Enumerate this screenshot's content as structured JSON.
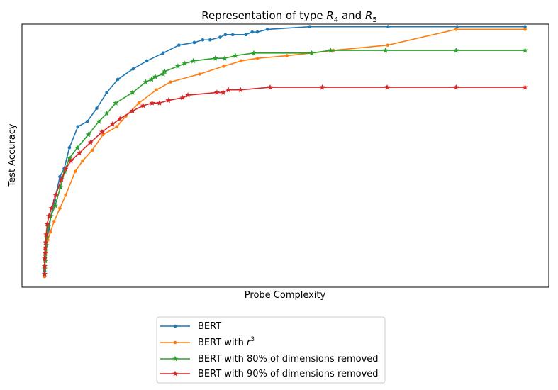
{
  "chart_data": {
    "type": "line",
    "title": "Representation of type R_4 and R_5",
    "title_parts": {
      "prefix": "Representation of type ",
      "r": "R",
      "sub4": "4",
      "and": " and ",
      "sub5": "5"
    },
    "xlabel": "Probe Complexity",
    "ylabel": "Test Accuracy",
    "xlim": [
      0,
      100
    ],
    "ylim": [
      0,
      100
    ],
    "xticks": [],
    "yticks": [],
    "grid": false,
    "legend_position": "below",
    "series": [
      {
        "name": "BERT",
        "legend_label": "BERT",
        "color": "#1f77b4",
        "marker": "circle",
        "x": [
          4.3,
          4.3,
          4.4,
          4.4,
          4.5,
          4.6,
          4.8,
          5.1,
          5.5,
          6.2,
          7.2,
          8.0,
          9.0,
          10.6,
          12.4,
          14.2,
          16.1,
          18.2,
          21.1,
          23.7,
          26.8,
          29.8,
          32.7,
          34.3,
          35.7,
          37.6,
          38.6,
          40.0,
          42.5,
          43.7,
          44.7,
          46.6,
          54.6,
          69.5,
          82.6,
          95.5
        ],
        "y": [
          6,
          8,
          11,
          13,
          15,
          17,
          19,
          22,
          27,
          33,
          42,
          45,
          53,
          61,
          63,
          68,
          74,
          79,
          83,
          86,
          89,
          92,
          93,
          94,
          94,
          95,
          96,
          96,
          96,
          97,
          97,
          98,
          99,
          99,
          99,
          99
        ]
      },
      {
        "name": "BERT with r^3",
        "legend_label_parts": {
          "prefix": "BERT with ",
          "r": "r",
          "sup": "3"
        },
        "color": "#ff7f0e",
        "marker": "circle",
        "x": [
          4.3,
          4.3,
          4.4,
          4.5,
          4.6,
          4.9,
          5.4,
          6.1,
          7.2,
          8.3,
          10.1,
          11.5,
          13.3,
          15.4,
          18.0,
          19.7,
          22.2,
          25.5,
          28.2,
          33.7,
          38.3,
          41.6,
          44.7,
          50.3,
          55.0,
          59.1,
          69.4,
          82.4,
          95.5
        ],
        "y": [
          4,
          7,
          10,
          13,
          16,
          18,
          21,
          25,
          30,
          35,
          44,
          48,
          52,
          58,
          61,
          65,
          70,
          75,
          78,
          81,
          84,
          86,
          87,
          88,
          89,
          90,
          92,
          98,
          98
        ]
      },
      {
        "name": "BERT with 80% of dimensions removed",
        "legend_label": "BERT with 80% of dimensions removed",
        "color": "#2ca02c",
        "marker": "star",
        "x": [
          4.3,
          4.3,
          4.4,
          4.4,
          4.5,
          4.6,
          4.7,
          5.0,
          5.5,
          6.3,
          7.3,
          8.1,
          9.0,
          10.5,
          12.6,
          14.6,
          16.1,
          17.8,
          21.0,
          23.5,
          24.6,
          25.3,
          26.8,
          27.1,
          29.6,
          30.9,
          32.5,
          36.7,
          38.5,
          40.5,
          44.0,
          55.0,
          58.6,
          69.0,
          82.4,
          95.5
        ],
        "y": [
          5,
          7,
          10,
          12,
          14,
          16,
          19,
          23,
          27,
          31,
          38,
          44,
          49,
          53,
          58,
          63,
          66,
          70,
          74,
          78,
          79,
          80,
          81,
          82,
          84,
          85,
          86,
          87,
          87,
          88,
          89,
          89,
          90,
          90,
          90,
          90
        ]
      },
      {
        "name": "BERT with 90% of dimensions removed",
        "legend_label": "BERT with 90% of dimensions removed",
        "color": "#d62728",
        "marker": "star",
        "x": [
          4.3,
          4.3,
          4.3,
          4.4,
          4.4,
          4.5,
          4.6,
          4.8,
          5.1,
          5.6,
          6.4,
          7.5,
          8.3,
          9.3,
          10.9,
          13.0,
          15.2,
          17.2,
          18.6,
          21.0,
          23.0,
          24.7,
          26.1,
          27.8,
          30.5,
          31.5,
          37.0,
          38.2,
          39.2,
          41.5,
          47.1,
          57.0,
          69.3,
          82.4,
          95.5
        ],
        "y": [
          5,
          8,
          11,
          13,
          15,
          17,
          20,
          24,
          27,
          30,
          35,
          41,
          45,
          48,
          51,
          55,
          59,
          62,
          64,
          67,
          69,
          70,
          70,
          71,
          72,
          73,
          74,
          74,
          75,
          75,
          76,
          76,
          76,
          76,
          76
        ]
      }
    ]
  }
}
